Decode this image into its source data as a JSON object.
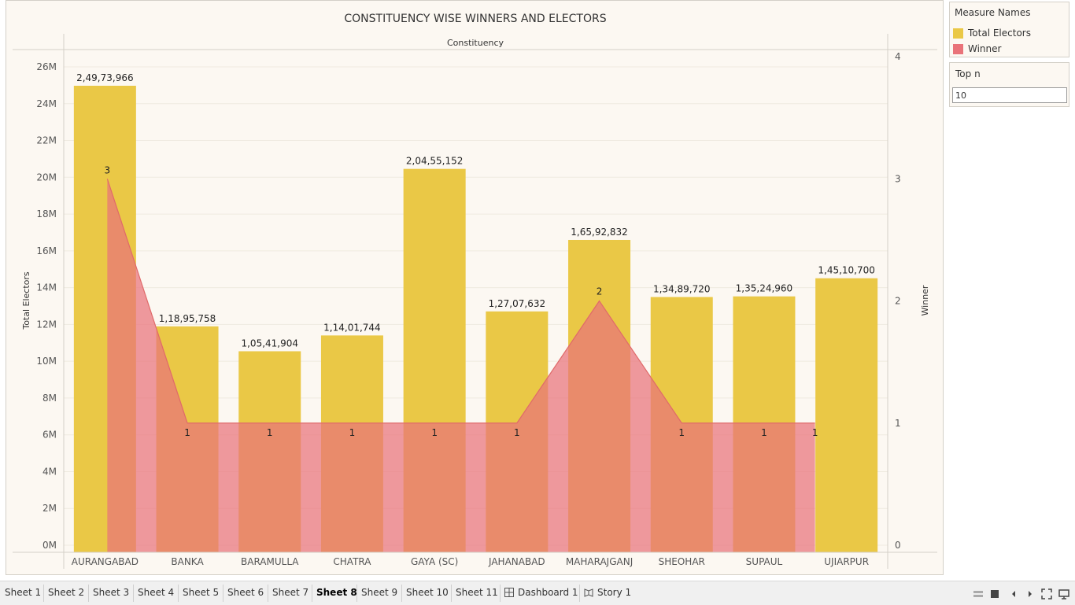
{
  "chart_data": {
    "type": "bar",
    "title": "CONSTITUENCY WISE WINNERS AND ELECTORS",
    "column_header": "Constituency",
    "categories": [
      "AURANGABAD",
      "BANKA",
      "BARAMULLA",
      "CHATRA",
      "GAYA (SC)",
      "JAHANABAD",
      "MAHARAJGANJ",
      "SHEOHAR",
      "SUPAUL",
      "UJIARPUR"
    ],
    "series": [
      {
        "name": "Total Electors",
        "mark": "bar",
        "axis": "left",
        "color": "#eac846",
        "values": [
          24973966,
          11895758,
          10541904,
          11401744,
          20455152,
          12707632,
          16592832,
          13489720,
          13524960,
          14510700
        ],
        "labels": [
          "2,49,73,966",
          "1,18,95,758",
          "1,05,41,904",
          "1,14,01,744",
          "2,04,55,152",
          "1,27,07,632",
          "1,65,92,832",
          "1,34,89,720",
          "1,35,24,960",
          "1,45,10,700"
        ]
      },
      {
        "name": "Winner",
        "mark": "area",
        "axis": "right",
        "color": "#e9737a",
        "values": [
          3,
          1,
          1,
          1,
          1,
          1,
          2,
          1,
          1,
          1
        ],
        "labels": [
          "3",
          "1",
          "1",
          "1",
          "1",
          "1",
          "2",
          "1",
          "1",
          "1"
        ]
      }
    ],
    "left_axis": {
      "label": "Total Electors",
      "ylim": [
        0,
        26000000
      ],
      "ticks": [
        0,
        2000000,
        4000000,
        6000000,
        8000000,
        10000000,
        12000000,
        14000000,
        16000000,
        18000000,
        20000000,
        22000000,
        24000000,
        26000000
      ],
      "tick_labels": [
        "0M",
        "2M",
        "4M",
        "6M",
        "8M",
        "10M",
        "12M",
        "14M",
        "16M",
        "18M",
        "20M",
        "22M",
        "24M",
        "26M"
      ]
    },
    "right_axis": {
      "label": "Winner",
      "ylim": [
        0,
        4
      ],
      "ticks": [
        0,
        1,
        2,
        3,
        4
      ],
      "tick_labels": [
        "0",
        "1",
        "2",
        "3",
        "4"
      ]
    },
    "grid": true
  },
  "legend": {
    "title": "Measure Names",
    "items": [
      {
        "label": "Total Electors",
        "color": "#eac846"
      },
      {
        "label": "Winner",
        "color": "#e9737a"
      }
    ]
  },
  "filter": {
    "title": "Top n",
    "value": "10"
  },
  "tabs": [
    {
      "label": "Sheet 1",
      "icon": null,
      "active": false
    },
    {
      "label": "Sheet 2",
      "icon": null,
      "active": false
    },
    {
      "label": "Sheet 3",
      "icon": null,
      "active": false
    },
    {
      "label": "Sheet 4",
      "icon": null,
      "active": false
    },
    {
      "label": "Sheet 5",
      "icon": null,
      "active": false
    },
    {
      "label": "Sheet 6",
      "icon": null,
      "active": false
    },
    {
      "label": "Sheet 7",
      "icon": null,
      "active": false
    },
    {
      "label": "Sheet 8",
      "icon": null,
      "active": true
    },
    {
      "label": "Sheet 9",
      "icon": null,
      "active": false
    },
    {
      "label": "Sheet 10",
      "icon": null,
      "active": false
    },
    {
      "label": "Sheet 11",
      "icon": null,
      "active": false
    },
    {
      "label": "Dashboard 1",
      "icon": "dashboard-icon",
      "active": false
    },
    {
      "label": "Story 1",
      "icon": "story-icon",
      "active": false
    }
  ],
  "controls": [
    "grid-view-icon",
    "filmstrip-icon",
    "previous-icon",
    "next-icon",
    "fullscreen-icon",
    "presentation-icon"
  ]
}
